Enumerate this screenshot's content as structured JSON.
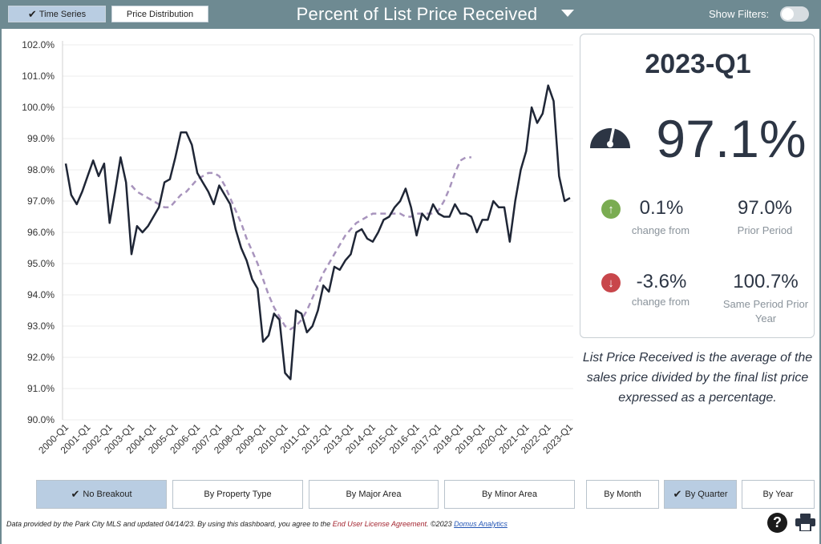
{
  "header": {
    "view_buttons": [
      {
        "label": "Time Series",
        "active": true
      },
      {
        "label": "Price Distribution",
        "active": false
      }
    ],
    "title": "Percent of List Price Received",
    "show_filters_label": "Show Filters:"
  },
  "kpi": {
    "period": "2023-Q1",
    "value": "97.1%",
    "change_prior": {
      "value": "0.1%",
      "label": "change from",
      "compare_value": "97.0%",
      "compare_label": "Prior Period"
    },
    "change_year": {
      "value": "-3.6%",
      "label": "change from",
      "compare_value": "100.7%",
      "compare_label": "Same Period Prior Year"
    },
    "icons": {
      "gauge": "speedometer-icon",
      "up": "arrow-up-icon",
      "down": "arrow-down-icon"
    }
  },
  "description": "List Price Received is the average of the sales price divided by the final list price expressed as a percentage.",
  "breakout_buttons": [
    {
      "label": "No Breakout",
      "active": true
    },
    {
      "label": "By Property Type",
      "active": false
    },
    {
      "label": "By Major Area",
      "active": false
    },
    {
      "label": "By Minor Area",
      "active": false
    }
  ],
  "period_buttons": [
    {
      "label": "By Month",
      "active": false
    },
    {
      "label": "By Quarter",
      "active": true
    },
    {
      "label": "By Year",
      "active": false
    }
  ],
  "footer": {
    "text_before": "Data provided by the Park City MLS and updated 04/14/23.  By using this dashboard, you agree to the ",
    "eula": "End User License Agreement",
    "text_after": ".  ©2023 ",
    "domus": "Domus Analytics"
  },
  "colors": {
    "header": "#6e8a92",
    "line": "#1f2636",
    "trend": "#a894bd",
    "active": "#b9cde2"
  },
  "chart_data": {
    "type": "line",
    "title": "",
    "xlabel": "",
    "ylabel": "",
    "ylim": [
      90.0,
      102.0
    ],
    "yticks": [
      "90.0%",
      "91.0%",
      "92.0%",
      "93.0%",
      "94.0%",
      "95.0%",
      "96.0%",
      "97.0%",
      "98.0%",
      "99.0%",
      "100.0%",
      "101.0%",
      "102.0%"
    ],
    "xticks": [
      "2000-Q1",
      "2001-Q1",
      "2002-Q1",
      "2003-Q1",
      "2004-Q1",
      "2005-Q1",
      "2006-Q1",
      "2007-Q1",
      "2008-Q1",
      "2009-Q1",
      "2010-Q1",
      "2011-Q1",
      "2012-Q1",
      "2013-Q1",
      "2014-Q1",
      "2015-Q1",
      "2016-Q1",
      "2017-Q1",
      "2018-Q1",
      "2019-Q1",
      "2020-Q1",
      "2021-Q1",
      "2022-Q1",
      "2023-Q1"
    ],
    "grid": true,
    "series": [
      {
        "style": "solid",
        "values": [
          98.2,
          97.2,
          96.9,
          97.3,
          97.8,
          98.3,
          97.8,
          98.2,
          96.3,
          97.3,
          98.4,
          97.6,
          95.3,
          96.2,
          96.0,
          96.2,
          96.5,
          96.8,
          97.6,
          97.7,
          98.4,
          99.2,
          99.2,
          98.8,
          97.9,
          97.6,
          97.3,
          96.9,
          97.5,
          97.2,
          96.9,
          96.1,
          95.5,
          95.1,
          94.5,
          94.2,
          92.5,
          92.7,
          93.4,
          93.2,
          91.5,
          91.3,
          93.5,
          93.4,
          92.8,
          93.0,
          93.5,
          94.3,
          94.1,
          94.9,
          94.8,
          95.1,
          95.3,
          96.0,
          96.1,
          95.8,
          95.7,
          96.0,
          96.4,
          96.5,
          96.8,
          97.0,
          97.4,
          96.8,
          95.9,
          96.6,
          96.4,
          96.9,
          96.6,
          96.5,
          96.5,
          96.9,
          96.6,
          96.6,
          96.5,
          96.0,
          96.4,
          96.4,
          97.0,
          96.8,
          96.8,
          95.7,
          97.0,
          98.0,
          98.6,
          100.0,
          99.5,
          99.8,
          100.7,
          100.2,
          97.8,
          97.0,
          97.1
        ]
      },
      {
        "style": "dashed",
        "start_index": 12,
        "values": [
          97.5,
          97.3,
          97.2,
          97.1,
          97.0,
          96.9,
          96.8,
          96.8,
          97.0,
          97.2,
          97.3,
          97.5,
          97.7,
          97.8,
          97.9,
          97.9,
          97.8,
          97.5,
          97.1,
          96.7,
          96.3,
          95.8,
          95.4,
          95.0,
          94.5,
          94.0,
          93.6,
          93.3,
          93.0,
          92.9,
          93.0,
          93.2,
          93.5,
          93.9,
          94.3,
          94.7,
          95.0,
          95.3,
          95.6,
          95.9,
          96.1,
          96.3,
          96.4,
          96.5,
          96.6,
          96.6,
          96.6,
          96.6,
          96.6,
          96.6,
          96.5,
          96.5,
          96.6,
          96.6,
          96.6,
          96.6,
          96.7,
          97.0,
          97.4,
          97.9,
          98.3,
          98.4,
          98.4
        ]
      }
    ]
  }
}
